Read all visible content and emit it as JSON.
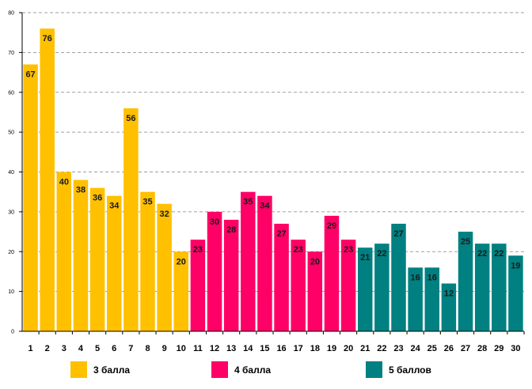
{
  "chart_data": {
    "type": "bar",
    "title": "",
    "xlabel": "",
    "ylabel": "",
    "ylim": [
      0,
      80
    ],
    "yticks": [
      0,
      10,
      20,
      30,
      40,
      50,
      60,
      70,
      80
    ],
    "grid": true,
    "categories": [
      "1",
      "2",
      "3",
      "4",
      "5",
      "6",
      "7",
      "8",
      "9",
      "10",
      "11",
      "12",
      "13",
      "14",
      "15",
      "16",
      "17",
      "18",
      "19",
      "20",
      "21",
      "22",
      "23",
      "24",
      "25",
      "26",
      "27",
      "28",
      "29",
      "30"
    ],
    "values": [
      67,
      76,
      40,
      38,
      36,
      34,
      56,
      35,
      32,
      20,
      23,
      30,
      28,
      35,
      34,
      27,
      23,
      20,
      29,
      23,
      21,
      22,
      27,
      16,
      16,
      12,
      25,
      22,
      22,
      19
    ],
    "series": [
      {
        "name": "3 балла",
        "color": "#FFC000",
        "from": 0,
        "to": 9
      },
      {
        "name": "4 балла",
        "color": "#FF0066",
        "from": 10,
        "to": 19
      },
      {
        "name": "5 баллов",
        "color": "#008080",
        "from": 20,
        "to": 29
      }
    ],
    "legend_position": "bottom"
  }
}
